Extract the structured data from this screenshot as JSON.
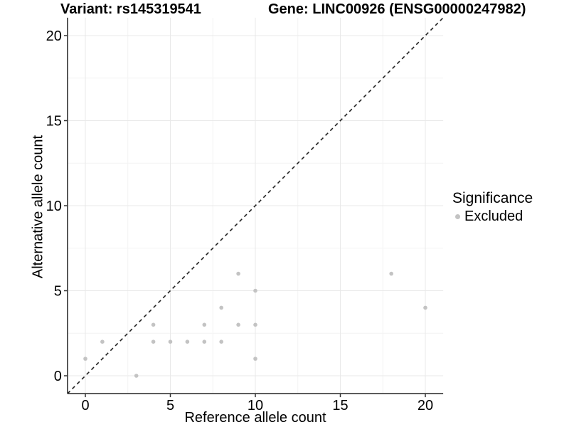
{
  "chart_data": {
    "type": "scatter",
    "titles": {
      "variant": "Variant: rs145319541",
      "gene": "Gene: LINC00926 (ENSG00000247982)"
    },
    "xlabel": "Reference allele count",
    "ylabel": "Alternative allele count",
    "xlim": [
      -1.05,
      21.05
    ],
    "ylim": [
      -1.05,
      21.05
    ],
    "x_ticks": [
      0,
      5,
      10,
      15,
      20
    ],
    "x_tick_labels": [
      "0",
      "5",
      "10",
      "15",
      "20"
    ],
    "y_ticks": [
      0,
      5,
      10,
      15,
      20
    ],
    "y_tick_labels": [
      "0",
      "5",
      "10",
      "15",
      "20"
    ],
    "x_minor_ticks": [
      2.5,
      7.5,
      12.5,
      17.5
    ],
    "y_minor_ticks": [
      2.5,
      7.5,
      12.5,
      17.5
    ],
    "grid": "major and minor gridlines on",
    "series": [
      {
        "name": "Excluded",
        "color": "#c3c3c3",
        "points": [
          [
            0,
            1
          ],
          [
            1,
            2
          ],
          [
            3,
            0
          ],
          [
            4,
            2
          ],
          [
            4,
            3
          ],
          [
            5,
            2
          ],
          [
            6,
            2
          ],
          [
            7,
            2
          ],
          [
            7,
            3
          ],
          [
            8,
            2
          ],
          [
            8,
            4
          ],
          [
            9,
            3
          ],
          [
            9,
            6
          ],
          [
            10,
            1
          ],
          [
            10,
            3
          ],
          [
            10,
            5
          ],
          [
            18,
            6
          ],
          [
            20,
            4
          ]
        ]
      }
    ],
    "reference_line": {
      "type": "identity y=x",
      "style": "dashed",
      "color": "#222222"
    },
    "legend": {
      "position": "right",
      "title": "Significance",
      "items": [
        {
          "label": "Excluded",
          "color": "#c3c3c3"
        }
      ]
    },
    "style": {
      "background": "#ffffff",
      "grid_major": "#e9e9e9",
      "grid_minor": "#f4f4f4",
      "axis_color": "#333333",
      "text_color": "#000000"
    }
  }
}
